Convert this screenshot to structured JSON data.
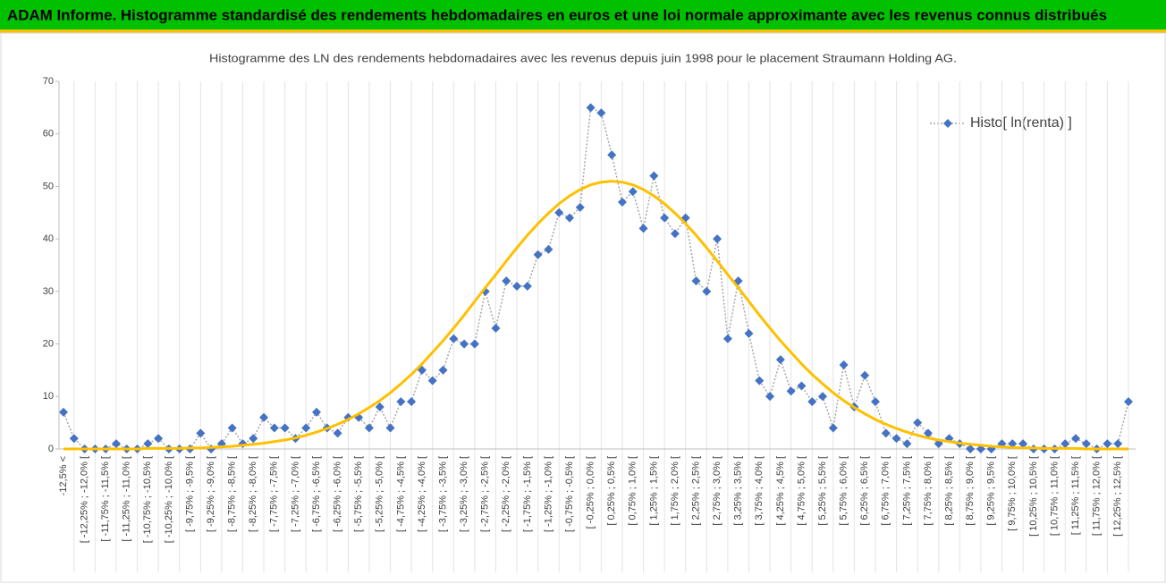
{
  "header": {
    "title": "ADAM Informe. Histogramme standardisé des rendements hebdomadaires en euros et une loi normale approximante avec les revenus connus distribués"
  },
  "chart_data": {
    "type": "line",
    "title": "Histogramme des LN des rendements hebdomadaires avec les revenus depuis juin 1998 pour le placement Straumann Holding AG.",
    "categories": [
      "-12,5% <",
      null,
      "[ -12,25% ; -12,0% [",
      null,
      "[ -11,75% ; -11,5% [",
      null,
      "[ -11,25% ; -11,0% [",
      null,
      "[ -10,75% ; -10,5% [",
      null,
      "[ -10,25% ; -10,0% [",
      null,
      "[ -9,75% ; -9,5% [",
      null,
      "[ -9,25% ; -9,0% [",
      null,
      "[ -8,75% ; -8,5% [",
      null,
      "[ -8,25% ; -8,0% [",
      null,
      "[ -7,75% ; -7,5% [",
      null,
      "[ -7,25% ; -7,0% [",
      null,
      "[ -6,75% ; -6,5% [",
      null,
      "[ -6,25% ; -6,0% [",
      null,
      "[ -5,75% ; -5,5% [",
      null,
      "[ -5,25% ; -5,0% [",
      null,
      "[ -4,75% ; -4,5% [",
      null,
      "[ -4,25% ; -4,0% [",
      null,
      "[ -3,75% ; -3,5% [",
      null,
      "[ -3,25% ; -3,0% [",
      null,
      "[ -2,75% ; -2,5% [",
      null,
      "[ -2,25% ; -2,0% [",
      null,
      "[ -1,75% ; -1,5% [",
      null,
      "[ -1,25% ; -1,0% [",
      null,
      "[ -0,75% ; -0,5% [",
      null,
      "[ -0,25% ; 0,0% [",
      null,
      "[ 0,25% ; 0,5% [",
      null,
      "[ 0,75% ; 1,0% [",
      null,
      "[ 1,25% ; 1,5% [",
      null,
      "[ 1,75% ; 2,0% [",
      null,
      "[ 2,25% ; 2,5% [",
      null,
      "[ 2,75% ; 3,0% [",
      null,
      "[ 3,25% ; 3,5% [",
      null,
      "[ 3,75% ; 4,0% [",
      null,
      "[ 4,25% ; 4,5% [",
      null,
      "[ 4,75% ; 5,0% [",
      null,
      "[ 5,25% ; 5,5% [",
      null,
      "[ 5,75% ; 6,0% [",
      null,
      "[ 6,25% ; 6,5% [",
      null,
      "[ 6,75% ; 7,0% [",
      null,
      "[ 7,25% ; 7,5% [",
      null,
      "[ 7,75% ; 8,0% [",
      null,
      "[ 8,25% ; 8,5% [",
      null,
      "[ 8,75% ; 9,0% [",
      null,
      "[ 9,25% ; 9,5% [",
      null,
      "[ 9,75% ; 10,0% [",
      null,
      "[ 10,25% ; 10,5% [",
      null,
      "[ 10,75% ; 11,0% [",
      null,
      "[ 11,25% ; 11,5% [",
      null,
      "[ 11,75% ; 12,0% [",
      null,
      "[ 12,25% ; 12,5% [",
      null
    ],
    "series": [
      {
        "name": "Histo[ ln(renta) ]",
        "color": "#4472c4",
        "line_color": "#a6a6a6",
        "values": [
          7,
          2,
          0,
          0,
          0,
          1,
          0,
          0,
          1,
          2,
          0,
          0,
          0,
          3,
          0,
          1,
          4,
          1,
          2,
          6,
          4,
          4,
          2,
          4,
          7,
          4,
          3,
          6,
          6,
          4,
          8,
          4,
          9,
          9,
          15,
          13,
          15,
          21,
          20,
          20,
          30,
          23,
          32,
          31,
          31,
          37,
          38,
          45,
          44,
          46,
          65,
          64,
          56,
          47,
          49,
          42,
          52,
          44,
          41,
          44,
          32,
          30,
          40,
          21,
          32,
          22,
          13,
          10,
          17,
          11,
          12,
          9,
          10,
          4,
          16,
          8,
          14,
          9,
          3,
          2,
          1,
          5,
          3,
          1,
          2,
          1,
          0,
          0,
          0,
          1,
          1,
          1,
          0,
          0,
          0,
          1,
          2,
          1,
          0,
          1,
          1,
          9
        ]
      },
      {
        "color": "#ffc000",
        "values": [
          0,
          0,
          0,
          0,
          0,
          0,
          0,
          0,
          0.1,
          0.1,
          0.1,
          0.1,
          0.2,
          0.2,
          0.3,
          0.4,
          0.5,
          0.7,
          0.9,
          1.1,
          1.4,
          1.7,
          2.1,
          2.6,
          3.2,
          3.9,
          4.7,
          5.6,
          6.7,
          7.9,
          9.2,
          10.7,
          12.4,
          14.2,
          16.2,
          18.4,
          20.6,
          23.0,
          25.5,
          28.1,
          30.7,
          33.2,
          35.8,
          38.3,
          40.7,
          42.9,
          44.9,
          46.7,
          48.2,
          49.4,
          50.3,
          50.8,
          51,
          50.8,
          50.3,
          49.4,
          48.2,
          46.7,
          44.9,
          42.9,
          40.7,
          38.3,
          35.8,
          33.2,
          30.7,
          28.1,
          25.5,
          23.0,
          20.6,
          18.4,
          16.2,
          14.2,
          12.4,
          10.7,
          9.2,
          7.9,
          6.7,
          5.6,
          4.7,
          3.9,
          3.2,
          2.6,
          2.1,
          1.7,
          1.4,
          1.1,
          0.9,
          0.7,
          0.5,
          0.4,
          0.3,
          0.2,
          0.2,
          0.1,
          0.1,
          0.1,
          0.1,
          0,
          0,
          0,
          0,
          0
        ]
      }
    ],
    "ylim": [
      0,
      70
    ],
    "yticks": [
      0,
      10,
      20,
      30,
      40,
      50,
      60,
      70
    ],
    "legend": "upper right"
  }
}
